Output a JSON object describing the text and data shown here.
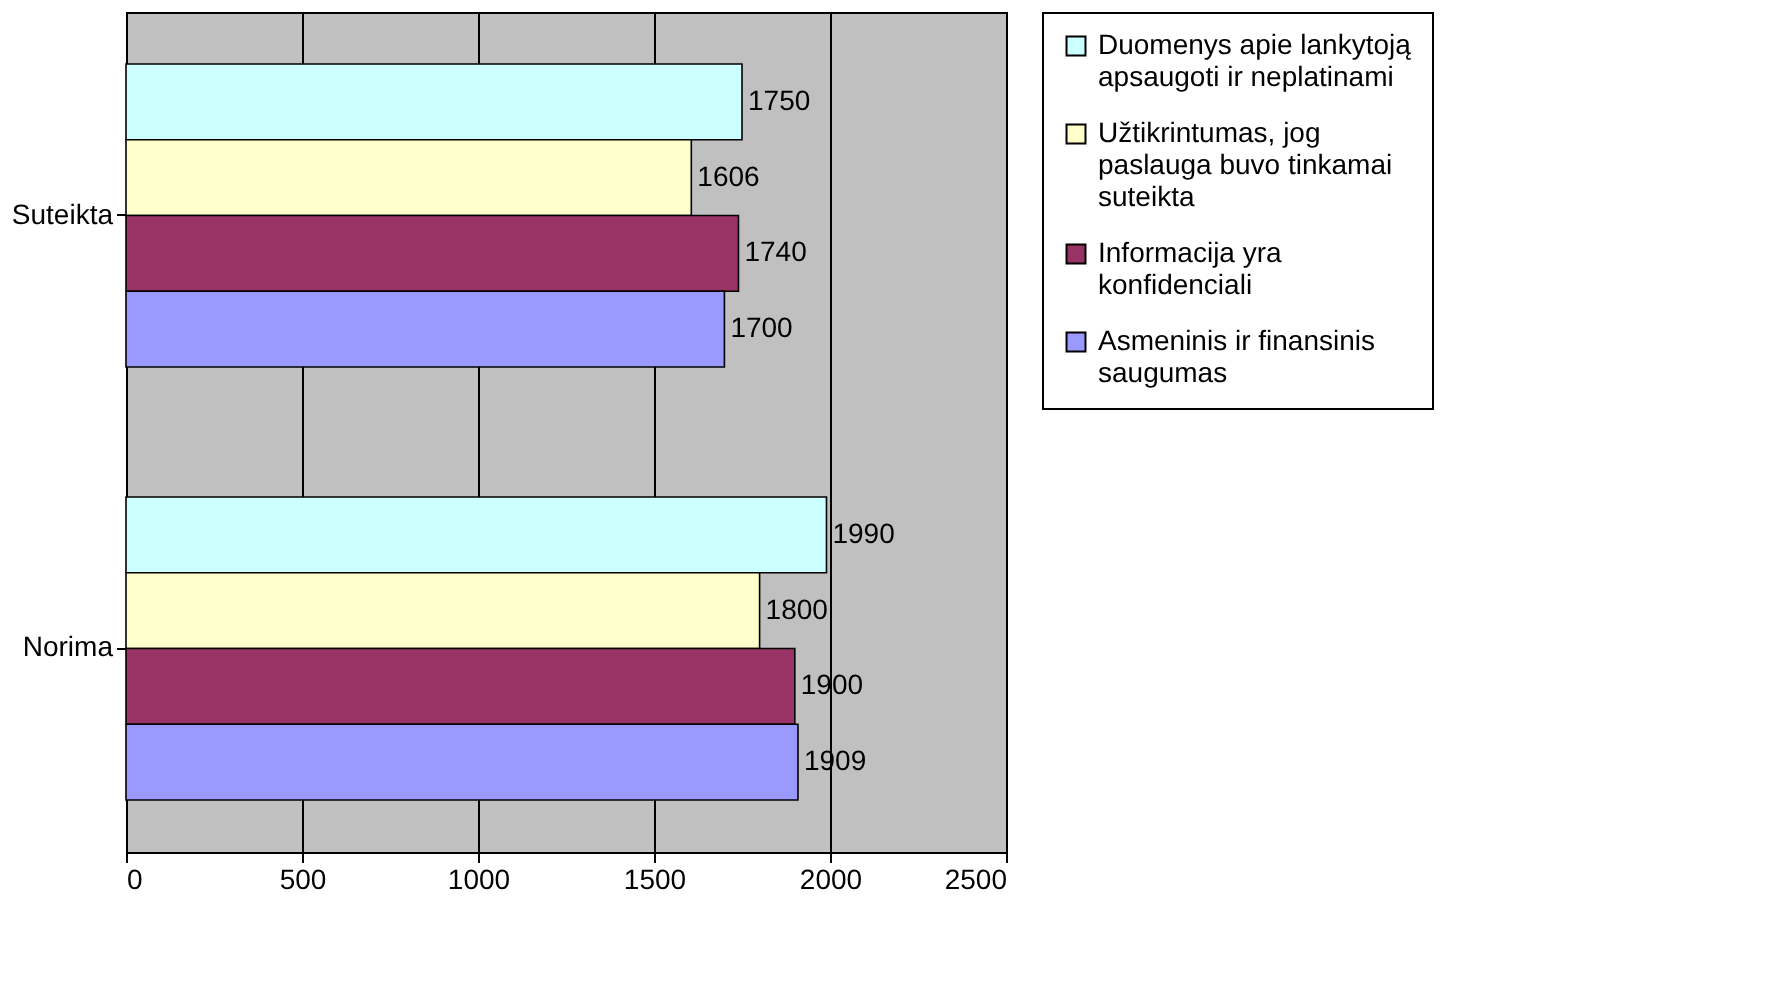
{
  "chart_data": {
    "type": "bar",
    "orientation": "horizontal",
    "categories": [
      "Suteikta",
      "Norima"
    ],
    "series": [
      {
        "name": "Duomenys apie lankytoją apsaugoti ir neplatinami",
        "color": "#ccffff",
        "values": [
          1750,
          1990
        ]
      },
      {
        "name": "Užtikrintumas, jog paslauga buvo tinkamai suteikta",
        "color": "#ffffcc",
        "values": [
          1606,
          1800
        ]
      },
      {
        "name": "Informacija yra konfidenciali",
        "color": "#993366",
        "values": [
          1740,
          1900
        ]
      },
      {
        "name": "Asmeninis ir finansinis saugumas",
        "color": "#9999ff",
        "values": [
          1700,
          1909
        ]
      }
    ],
    "xlim": [
      0,
      2500
    ],
    "xticks": [
      0,
      500,
      1000,
      1500,
      2000,
      2500
    ],
    "grid": "x",
    "legend": "right",
    "data_labels": true
  }
}
